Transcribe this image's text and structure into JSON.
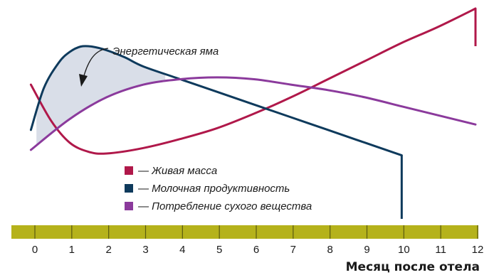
{
  "chart_data": {
    "type": "line",
    "title": "",
    "xlabel": "Месяц после отела",
    "ylabel": "",
    "x_ticks": [
      0,
      1,
      2,
      3,
      4,
      5,
      6,
      7,
      8,
      9,
      10,
      11,
      12
    ],
    "xlim": [
      0,
      12
    ],
    "grid": false,
    "legend_position": "center",
    "series": [
      {
        "name": "Живая масса",
        "color": "#b0184a",
        "x": [
          -0.05,
          0.5,
          1,
          1.5,
          2,
          3,
          4,
          5,
          6,
          7,
          8,
          9,
          10,
          11,
          12
        ],
        "y": [
          58,
          38,
          26,
          21,
          20,
          23,
          28,
          34,
          42,
          51,
          61,
          71,
          81,
          90,
          100
        ]
      },
      {
        "name": "Молочная продуктивность",
        "color": "#0e3a5c",
        "x": [
          -0.05,
          0.3,
          0.7,
          1,
          1.3,
          1.6,
          2,
          2.5,
          3,
          4,
          5,
          6,
          7,
          8,
          9,
          10
        ],
        "y": [
          33,
          56,
          70,
          76,
          79,
          79,
          77,
          73,
          68,
          61,
          54,
          47,
          40,
          33,
          26,
          19
        ]
      },
      {
        "name": "Потребление сухого вещества",
        "color": "#8b3a9c",
        "x": [
          -0.05,
          1,
          2,
          3,
          4,
          5,
          6,
          7,
          8,
          9,
          10,
          11,
          12
        ],
        "y": [
          22,
          39,
          51,
          58,
          61,
          62,
          61,
          58,
          55,
          51,
          46,
          41,
          36
        ]
      }
    ],
    "annotations": [
      {
        "text": "Энергетическая яма"
      }
    ]
  },
  "legend": [
    {
      "label": "— Живая масса",
      "color": "#b0184a"
    },
    {
      "label": "— Молочная продуктивность",
      "color": "#0e3a5c"
    },
    {
      "label": "— Потребление сухого вещества",
      "color": "#8b3a9c"
    }
  ],
  "axis_bar_color": "#b5b21b",
  "energy_gap_fill": "#d9dee8"
}
